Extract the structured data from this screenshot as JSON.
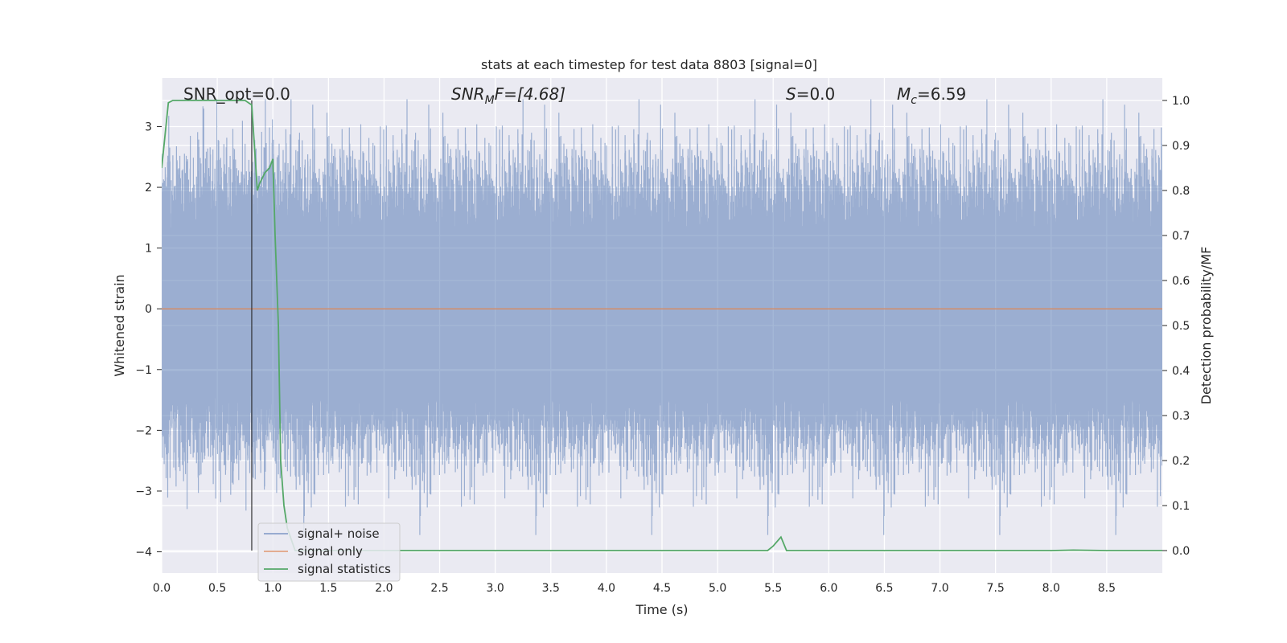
{
  "chart_data": {
    "type": "line",
    "title": "stats at each timestep for test data 8803 [signal=0]",
    "xlabel": "Time (s)",
    "ylabel": "Whitened strain",
    "ylabel_right": "Detection probability/MF",
    "xlim": [
      0.0,
      9.0
    ],
    "ylim": [
      -4.35,
      3.8
    ],
    "ylim_right": [
      -0.05,
      1.05
    ],
    "xticks": [
      0.0,
      0.5,
      1.0,
      1.5,
      2.0,
      2.5,
      3.0,
      3.5,
      4.0,
      4.5,
      5.0,
      5.5,
      6.0,
      6.5,
      7.0,
      7.5,
      8.0,
      8.5
    ],
    "xtick_labels": [
      "0.0",
      "0.5",
      "1.0",
      "1.5",
      "2.0",
      "2.5",
      "3.0",
      "3.5",
      "4.0",
      "4.5",
      "5.0",
      "5.5",
      "6.0",
      "6.5",
      "7.0",
      "7.5",
      "8.0",
      "8.5"
    ],
    "yticks": [
      -4,
      -3,
      -2,
      -1,
      0,
      1,
      2,
      3
    ],
    "ytick_labels": [
      "−4",
      "−3",
      "−2",
      "−1",
      "0",
      "1",
      "2",
      "3"
    ],
    "yticks_right": [
      0.0,
      0.1,
      0.2,
      0.3,
      0.4,
      0.5,
      0.6,
      0.7,
      0.8,
      0.9,
      1.0
    ],
    "ytick_labels_right": [
      "0.0",
      "0.1",
      "0.2",
      "0.3",
      "0.4",
      "0.5",
      "0.6",
      "0.7",
      "0.8",
      "0.9",
      "1.0"
    ],
    "grid": true,
    "legend_position": "lower-left",
    "annotations": {
      "snr_opt": "SNR_opt=0.0",
      "snr_mf_main": "SNR",
      "snr_mf_sub": "M",
      "snr_mf_rest": "F=[4.68]",
      "s_main": "S",
      "s_rest": "=0.0",
      "mc_main": "M",
      "mc_sub": "c",
      "mc_rest": "=6.59"
    },
    "vline_x": 0.81,
    "series": [
      {
        "name": "signal+ noise",
        "color": "#4c72b0",
        "axis": "left",
        "description_type": "noise",
        "x_range": [
          0.0,
          9.0
        ],
        "sample_rate_hz": 2048,
        "typical_range": [
          -2.0,
          2.0
        ],
        "peak_max": 3.45,
        "peak_min": -4.0
      },
      {
        "name": "signal only",
        "color": "#dd8452",
        "axis": "left",
        "x": [
          0.0,
          9.0
        ],
        "y": [
          0.0,
          0.0
        ]
      },
      {
        "name": "signal statistics",
        "color": "#55a868",
        "axis": "right",
        "x": [
          0.0,
          0.06,
          0.1,
          0.2,
          0.3,
          0.4,
          0.5,
          0.6,
          0.7,
          0.75,
          0.81,
          0.86,
          0.88,
          0.93,
          0.97,
          1.0,
          1.02,
          1.05,
          1.07,
          1.1,
          1.13,
          1.2,
          1.5,
          2.0,
          3.0,
          4.0,
          5.0,
          5.45,
          5.5,
          5.57,
          5.62,
          6.0,
          7.0,
          8.0,
          8.2,
          8.5,
          9.0
        ],
        "y": [
          0.85,
          0.995,
          1.0,
          1.0,
          1.0,
          1.0,
          1.0,
          1.0,
          1.0,
          1.0,
          0.99,
          0.8,
          0.815,
          0.84,
          0.85,
          0.87,
          0.7,
          0.5,
          0.2,
          0.1,
          0.05,
          0.0,
          0.0,
          0.0,
          0.0,
          0.0,
          0.0,
          0.0,
          0.01,
          0.03,
          0.0,
          0.0,
          0.0,
          0.0,
          0.001,
          0.0,
          0.0
        ]
      }
    ]
  }
}
